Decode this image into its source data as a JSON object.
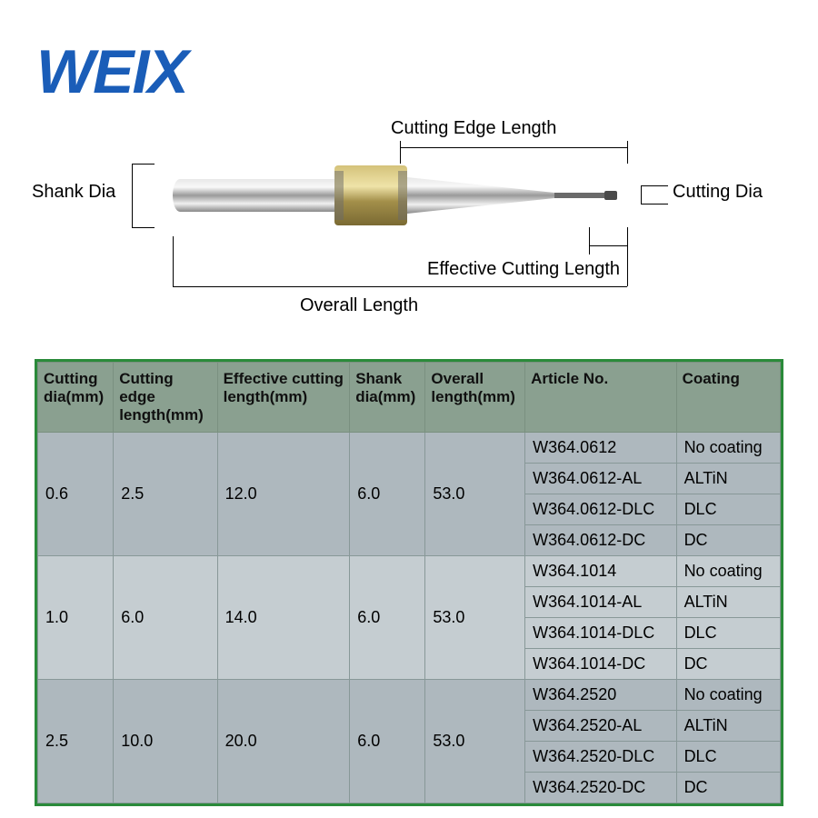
{
  "logo": {
    "text": "WEIX",
    "color": "#1a5db8"
  },
  "diagram": {
    "labels": {
      "shank_dia": "Shank Dia",
      "cutting_edge_length": "Cutting Edge Length",
      "cutting_dia": "Cutting Dia",
      "effective_cutting_length": "Effective Cutting Length",
      "overall_length": "Overall Length"
    }
  },
  "table": {
    "header_bg": "#8aa090",
    "border_color": "#2a8a3a",
    "band_colors": [
      "#aeb8be",
      "#c5cdd1"
    ],
    "columns": [
      "Cutting dia(mm)",
      "Cutting edge length(mm)",
      "Effective cutting length(mm)",
      "Shank dia(mm)",
      "Overall length(mm)",
      "Article No.",
      "Coating"
    ],
    "groups": [
      {
        "cutting_dia": "0.6",
        "cutting_edge": "2.5",
        "effective": "12.0",
        "shank": "6.0",
        "overall": "53.0",
        "articles": [
          "W364.0612",
          "W364.0612-AL",
          "W364.0612-DLC",
          "W364.0612-DC"
        ],
        "coatings": [
          "No coating",
          "ALTiN",
          "DLC",
          "DC"
        ]
      },
      {
        "cutting_dia": "1.0",
        "cutting_edge": "6.0",
        "effective": "14.0",
        "shank": "6.0",
        "overall": "53.0",
        "articles": [
          "W364.1014",
          "W364.1014-AL",
          "W364.1014-DLC",
          "W364.1014-DC"
        ],
        "coatings": [
          "No coating",
          "ALTiN",
          "DLC",
          "DC"
        ]
      },
      {
        "cutting_dia": "2.5",
        "cutting_edge": "10.0",
        "effective": "20.0",
        "shank": "6.0",
        "overall": "53.0",
        "articles": [
          "W364.2520",
          "W364.2520-AL",
          "W364.2520-DLC",
          "W364.2520-DC"
        ],
        "coatings": [
          "No coating",
          "ALTiN",
          "DLC",
          "DC"
        ]
      }
    ]
  }
}
